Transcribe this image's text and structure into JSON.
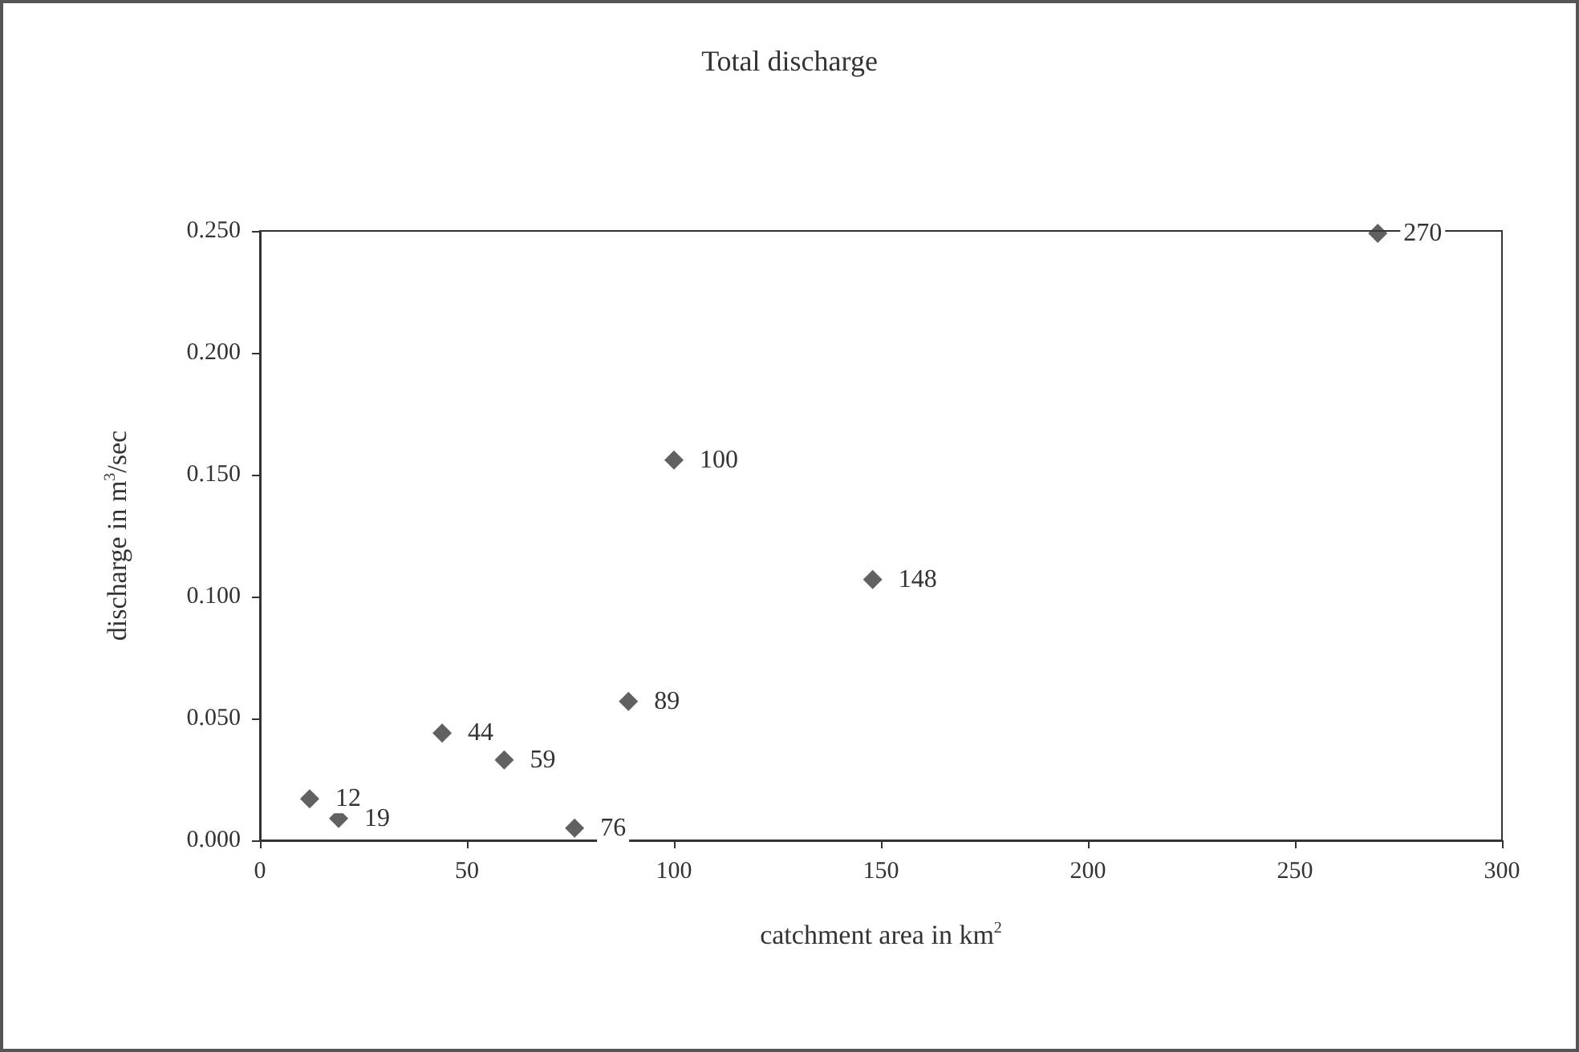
{
  "chart_data": {
    "type": "scatter",
    "title": "Total discharge",
    "xlabel": "catchment area in km$^{2}$",
    "ylabel": "discharge in m$^{3}$/sec",
    "x": [
      12,
      19,
      44,
      59,
      76,
      89,
      100,
      148,
      270
    ],
    "values": [
      0.017,
      0.009,
      0.044,
      0.033,
      0.005,
      0.057,
      0.156,
      0.107,
      0.249
    ],
    "annotations": [
      {
        "text": "12",
        "x": 12,
        "y": 0.017
      },
      {
        "text": "19",
        "x": 19,
        "y": 0.009
      },
      {
        "text": "44",
        "x": 44,
        "y": 0.044
      },
      {
        "text": "59",
        "x": 59,
        "y": 0.033
      },
      {
        "text": "76",
        "x": 76,
        "y": 0.005
      },
      {
        "text": "89",
        "x": 89,
        "y": 0.057
      },
      {
        "text": "100",
        "x": 100,
        "y": 0.156
      },
      {
        "text": "148",
        "x": 148,
        "y": 0.107
      },
      {
        "text": "270",
        "x": 270,
        "y": 0.249
      }
    ],
    "color": "#3a3a3a",
    "marker": "diamond",
    "grid": false,
    "xlim": [
      0,
      300
    ],
    "xticks": [
      0,
      50,
      100,
      150,
      200,
      250,
      300
    ],
    "ylim": [
      0,
      0.25
    ],
    "yticks": [
      {
        "value": 0,
        "label": "0.000"
      },
      {
        "value": 0.05,
        "label": "0.050"
      },
      {
        "value": 0.1,
        "label": "0.100"
      },
      {
        "value": 0.15,
        "label": "0.150"
      },
      {
        "value": 0.2,
        "label": "0.200"
      },
      {
        "value": 0.25,
        "label": "0.250"
      }
    ]
  }
}
